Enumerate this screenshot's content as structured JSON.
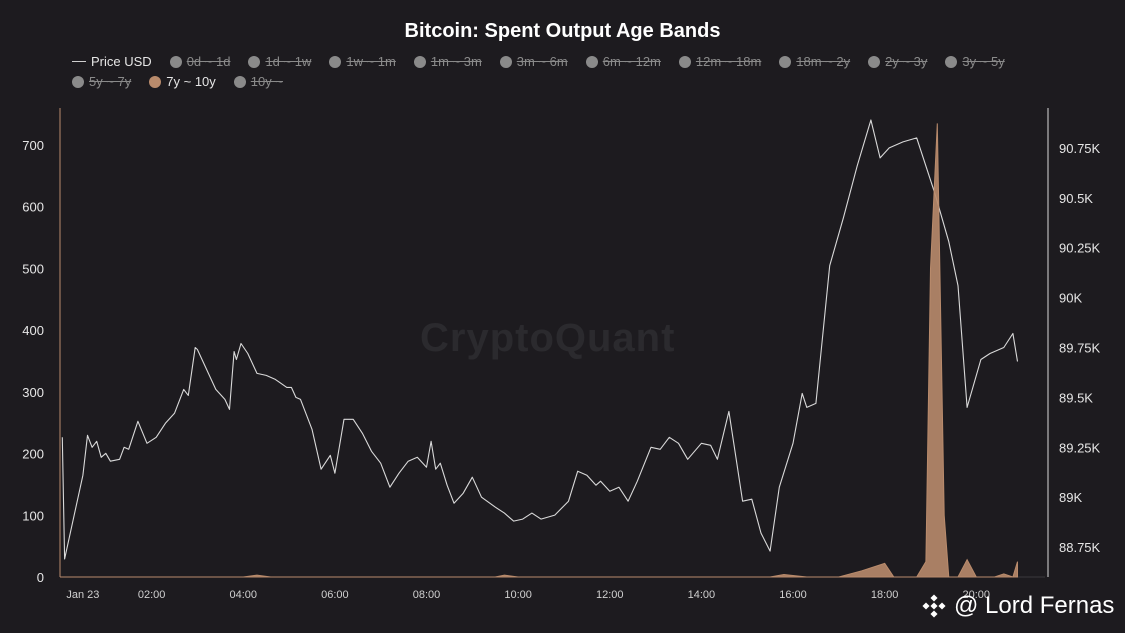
{
  "chart_data": {
    "type": "line",
    "title": "Bitcoin: Spent Output Age Bands",
    "legend": [
      {
        "label": "Price USD",
        "state": "on",
        "marker": "line"
      },
      {
        "label": "0d ~ 1d",
        "state": "off",
        "marker": "dot"
      },
      {
        "label": "1d ~ 1w",
        "state": "off",
        "marker": "dot"
      },
      {
        "label": "1w ~ 1m",
        "state": "off",
        "marker": "dot"
      },
      {
        "label": "1m ~ 3m",
        "state": "off",
        "marker": "dot"
      },
      {
        "label": "3m ~ 6m",
        "state": "off",
        "marker": "dot"
      },
      {
        "label": "6m ~ 12m",
        "state": "off",
        "marker": "dot"
      },
      {
        "label": "12m ~ 18m",
        "state": "off",
        "marker": "dot"
      },
      {
        "label": "18m ~ 2y",
        "state": "off",
        "marker": "dot"
      },
      {
        "label": "2y ~ 3y",
        "state": "off",
        "marker": "dot"
      },
      {
        "label": "3y ~ 5y",
        "state": "off",
        "marker": "dot"
      },
      {
        "label": "5y ~ 7y",
        "state": "off",
        "marker": "dot"
      },
      {
        "label": "7y ~ 10y",
        "state": "on",
        "marker": "dot"
      },
      {
        "label": "10y ~",
        "state": "off",
        "marker": "dot"
      }
    ],
    "x_ticks": [
      {
        "label": "Jan 23",
        "t": 0.5
      },
      {
        "label": "02:00",
        "t": 2
      },
      {
        "label": "04:00",
        "t": 4
      },
      {
        "label": "06:00",
        "t": 6
      },
      {
        "label": "08:00",
        "t": 8
      },
      {
        "label": "10:00",
        "t": 10
      },
      {
        "label": "12:00",
        "t": 12
      },
      {
        "label": "14:00",
        "t": 14
      },
      {
        "label": "16:00",
        "t": 16
      },
      {
        "label": "18:00",
        "t": 18
      },
      {
        "label": "20:00",
        "t": 20
      }
    ],
    "x_range_hours": [
      0,
      21.5
    ],
    "y_left": {
      "min": 0,
      "max": 760,
      "ticks": [
        0,
        100,
        200,
        300,
        400,
        500,
        600,
        700
      ]
    },
    "y_right": {
      "min": 88600,
      "max": 90950,
      "ticks": [
        {
          "v": 88750,
          "label": "88.75K"
        },
        {
          "v": 89000,
          "label": "89K"
        },
        {
          "v": 89250,
          "label": "89.25K"
        },
        {
          "v": 89500,
          "label": "89.5K"
        },
        {
          "v": 89750,
          "label": "89.75K"
        },
        {
          "v": 90000,
          "label": "90K"
        },
        {
          "v": 90250,
          "label": "90.25K"
        },
        {
          "v": 90500,
          "label": "90.5K"
        },
        {
          "v": 90750,
          "label": "90.75K"
        }
      ]
    },
    "grid": false,
    "series": [
      {
        "name": "Price USD",
        "axis": "right",
        "kind": "line",
        "color": "#d9d9d9",
        "points": [
          [
            0.05,
            89300
          ],
          [
            0.1,
            88690
          ],
          [
            0.5,
            89110
          ],
          [
            0.6,
            89310
          ],
          [
            0.65,
            89280
          ],
          [
            0.7,
            89250
          ],
          [
            0.8,
            89280
          ],
          [
            0.9,
            89200
          ],
          [
            1.0,
            89220
          ],
          [
            1.1,
            89180
          ],
          [
            1.3,
            89190
          ],
          [
            1.4,
            89250
          ],
          [
            1.5,
            89240
          ],
          [
            1.7,
            89380
          ],
          [
            1.9,
            89270
          ],
          [
            2.1,
            89300
          ],
          [
            2.3,
            89370
          ],
          [
            2.5,
            89420
          ],
          [
            2.7,
            89540
          ],
          [
            2.8,
            89510
          ],
          [
            2.95,
            89750
          ],
          [
            3.0,
            89740
          ],
          [
            3.4,
            89540
          ],
          [
            3.6,
            89490
          ],
          [
            3.7,
            89440
          ],
          [
            3.8,
            89730
          ],
          [
            3.85,
            89690
          ],
          [
            3.95,
            89770
          ],
          [
            4.1,
            89720
          ],
          [
            4.3,
            89620
          ],
          [
            4.5,
            89610
          ],
          [
            4.7,
            89590
          ],
          [
            4.95,
            89550
          ],
          [
            5.05,
            89550
          ],
          [
            5.15,
            89500
          ],
          [
            5.25,
            89490
          ],
          [
            5.5,
            89340
          ],
          [
            5.7,
            89140
          ],
          [
            5.9,
            89210
          ],
          [
            6.0,
            89120
          ],
          [
            6.2,
            89390
          ],
          [
            6.4,
            89390
          ],
          [
            6.6,
            89320
          ],
          [
            6.8,
            89230
          ],
          [
            7.0,
            89170
          ],
          [
            7.2,
            89050
          ],
          [
            7.4,
            89120
          ],
          [
            7.6,
            89180
          ],
          [
            7.8,
            89200
          ],
          [
            8.0,
            89150
          ],
          [
            8.1,
            89280
          ],
          [
            8.2,
            89140
          ],
          [
            8.3,
            89170
          ],
          [
            8.45,
            89060
          ],
          [
            8.6,
            88970
          ],
          [
            8.8,
            89020
          ],
          [
            9.0,
            89100
          ],
          [
            9.2,
            89000
          ],
          [
            9.5,
            88950
          ],
          [
            9.7,
            88920
          ],
          [
            9.9,
            88880
          ],
          [
            10.1,
            88890
          ],
          [
            10.3,
            88920
          ],
          [
            10.5,
            88890
          ],
          [
            10.8,
            88910
          ],
          [
            11.1,
            88980
          ],
          [
            11.3,
            89130
          ],
          [
            11.5,
            89110
          ],
          [
            11.7,
            89060
          ],
          [
            11.8,
            89080
          ],
          [
            12.0,
            89030
          ],
          [
            12.2,
            89050
          ],
          [
            12.4,
            88980
          ],
          [
            12.6,
            89080
          ],
          [
            12.9,
            89250
          ],
          [
            13.1,
            89240
          ],
          [
            13.3,
            89300
          ],
          [
            13.5,
            89270
          ],
          [
            13.7,
            89190
          ],
          [
            14.0,
            89270
          ],
          [
            14.2,
            89260
          ],
          [
            14.35,
            89190
          ],
          [
            14.6,
            89430
          ],
          [
            14.9,
            88980
          ],
          [
            15.1,
            88990
          ],
          [
            15.3,
            88820
          ],
          [
            15.5,
            88730
          ],
          [
            15.7,
            89050
          ],
          [
            16.0,
            89270
          ],
          [
            16.2,
            89520
          ],
          [
            16.3,
            89450
          ],
          [
            16.5,
            89470
          ],
          [
            16.8,
            90160
          ],
          [
            17.1,
            90400
          ],
          [
            17.4,
            90660
          ],
          [
            17.7,
            90890
          ],
          [
            17.9,
            90700
          ],
          [
            18.1,
            90750
          ],
          [
            18.4,
            90780
          ],
          [
            18.7,
            90800
          ],
          [
            19.1,
            90520
          ],
          [
            19.4,
            90280
          ],
          [
            19.6,
            90060
          ],
          [
            19.8,
            89450
          ],
          [
            20.1,
            89690
          ],
          [
            20.3,
            89720
          ],
          [
            20.6,
            89750
          ],
          [
            20.8,
            89820
          ],
          [
            20.9,
            89680
          ]
        ]
      },
      {
        "name": "7y ~ 10y",
        "axis": "left",
        "kind": "area",
        "color": "#b98b6c",
        "points": [
          [
            0,
            0
          ],
          [
            4,
            0
          ],
          [
            4.3,
            3
          ],
          [
            4.6,
            0
          ],
          [
            9.5,
            0
          ],
          [
            9.7,
            3
          ],
          [
            10.0,
            0
          ],
          [
            15.5,
            0
          ],
          [
            15.8,
            4
          ],
          [
            16.3,
            0
          ],
          [
            17.0,
            0
          ],
          [
            17.5,
            10
          ],
          [
            18.0,
            22
          ],
          [
            18.2,
            0
          ],
          [
            18.7,
            0
          ],
          [
            18.9,
            25
          ],
          [
            19.0,
            500
          ],
          [
            19.15,
            735
          ],
          [
            19.3,
            100
          ],
          [
            19.4,
            0
          ],
          [
            19.6,
            0
          ],
          [
            19.8,
            28
          ],
          [
            20.0,
            0
          ],
          [
            20.4,
            0
          ],
          [
            20.6,
            5
          ],
          [
            20.8,
            0
          ],
          [
            20.9,
            25
          ]
        ]
      }
    ]
  },
  "watermark": "CryptoQuant",
  "credit": "@ Lord Fernas",
  "colors": {
    "background": "#1d1b1f",
    "price_line": "#d9d9d9",
    "band_7y_10y": "#b98b6c",
    "legend_off_dot": "#8a8a8a"
  }
}
